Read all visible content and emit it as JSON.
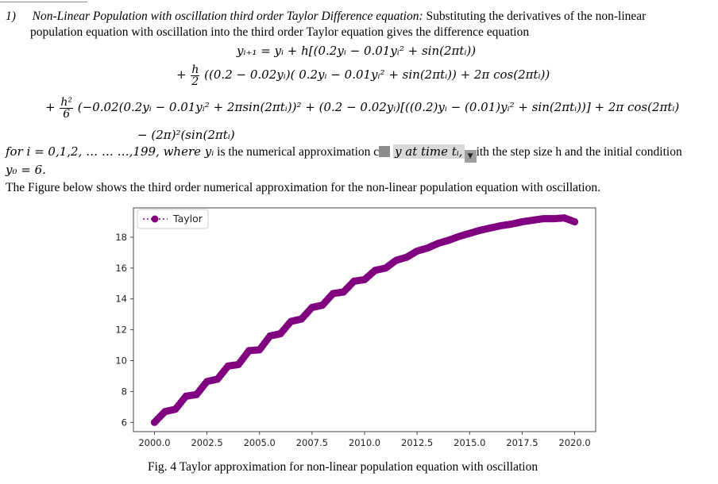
{
  "section": {
    "number": "1)",
    "title": "Non-Linear Population with oscillation third order Taylor Difference equation:",
    "intro_1": "Substituting the derivatives of the non-linear",
    "intro_2": "population equation with oscillation into the third order Taylor equation gives the difference equation"
  },
  "equation": {
    "line1": "yᵢ₊₁ = yᵢ + h[(0.2yᵢ − 0.01yᵢ² + sin(2πtᵢ))",
    "line2_plus": "+",
    "line2_num": "h",
    "line2_den": "2",
    "line2_body": "((0.2 − 0.02yᵢ)( 0.2yᵢ − 0.01yᵢ² + sin(2πtᵢ)) + 2π cos(2πtᵢ))",
    "line3_plus": "+",
    "line3_num": "h²",
    "line3_den": "6",
    "line3_body": "(−0.02(0.2yᵢ − 0.01yᵢ² + 2πsin(2πtᵢ))² + (0.2 − 0.02yᵢ)[((0.2)yᵢ − (0.01)yᵢ² + sin(2πtᵢ))] + 2π cos(2πtᵢ)",
    "line4": "− (2π)²(sin(2πtᵢ)"
  },
  "conditions": {
    "part1": "for i = 0,1,2, … … …,199, where yᵢ",
    "part2": "is the numerical approximation c",
    "part3": "y at time tᵢ,",
    "part4": "ith the  step size h and the initial condition",
    "initial": "y₀ = 6."
  },
  "figure_intro": "The Figure below shows the third order numerical approximation for the non-linear population equation with oscillation.",
  "caption": "Fig. 4 Taylor approximation for non-linear population equation with oscillation",
  "icons": {
    "selection_handle": "selection-handle-icon",
    "dropdown": "dropdown-arrow-icon"
  },
  "chart_data": {
    "type": "scatter",
    "series": [
      {
        "name": "Taylor",
        "color": "#800080",
        "marker": "circle",
        "x": [
          2000.0,
          2000.5,
          2001.0,
          2001.5,
          2002.0,
          2002.5,
          2003.0,
          2003.5,
          2004.0,
          2004.5,
          2005.0,
          2005.5,
          2006.0,
          2006.5,
          2007.0,
          2007.5,
          2008.0,
          2008.5,
          2009.0,
          2009.5,
          2010.0,
          2010.5,
          2011.0,
          2011.5,
          2012.0,
          2012.5,
          2013.0,
          2013.5,
          2014.0,
          2014.5,
          2015.0,
          2015.5,
          2016.0,
          2016.5,
          2017.0,
          2017.5,
          2018.0,
          2018.5,
          2019.0,
          2019.5,
          2020.0
        ],
        "y": [
          6.0,
          6.7,
          6.85,
          7.7,
          7.8,
          8.65,
          8.8,
          9.65,
          9.75,
          10.65,
          10.7,
          11.6,
          11.75,
          12.55,
          12.7,
          13.45,
          13.6,
          14.35,
          14.45,
          15.15,
          15.25,
          15.85,
          16.0,
          16.5,
          16.7,
          17.1,
          17.3,
          17.6,
          17.8,
          18.05,
          18.25,
          18.45,
          18.6,
          18.75,
          18.85,
          19.0,
          19.1,
          19.2,
          19.2,
          19.25,
          19.0
        ]
      }
    ],
    "xticks": [
      "2000.0",
      "2002.5",
      "2005.0",
      "2007.5",
      "2010.0",
      "2012.5",
      "2015.0",
      "2017.5",
      "2020.0"
    ],
    "yticks": [
      "6",
      "8",
      "10",
      "12",
      "14",
      "16",
      "18"
    ],
    "xlim": [
      1999.0,
      2021.0
    ],
    "ylim": [
      5.4,
      19.9
    ],
    "title": "",
    "xlabel": "",
    "ylabel": "",
    "grid": false,
    "legend": "top-left"
  }
}
